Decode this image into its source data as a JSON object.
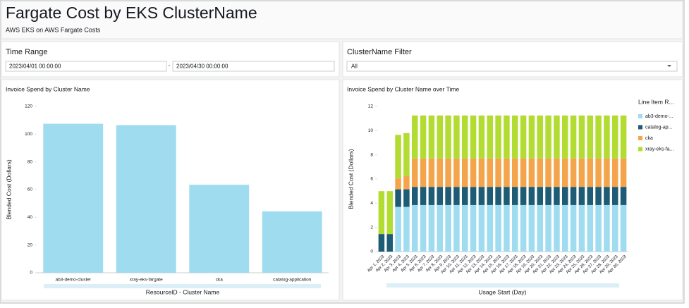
{
  "header": {
    "title": "Fargate Cost by EKS ClusterName",
    "subtitle": "AWS EKS on AWS Fargate Costs"
  },
  "controls": {
    "time_range": {
      "label": "Time Range",
      "start": "2023/04/01 00:00:00",
      "separator": "-",
      "end": "2023/04/30 00:00:00"
    },
    "cluster_filter": {
      "label": "ClusterName Filter",
      "value": "All"
    }
  },
  "chart_data": [
    {
      "type": "bar",
      "title": "Invoice Spend by Cluster Name",
      "categories": [
        "ab3-demo-cluster",
        "xray-eks-fargate",
        "cka",
        "catalog-application"
      ],
      "values": [
        107.5,
        106.5,
        63.5,
        44.3
      ],
      "color": "#a0dcef",
      "ylim": [
        0,
        120
      ],
      "yticks": [
        0,
        20,
        40,
        60,
        80,
        100,
        120
      ],
      "y_label": "Blended Cost (Dollars)",
      "x_label": "ResourceID - Cluster Name"
    },
    {
      "type": "stacked_bar",
      "title": "Invoice Spend by Cluster Name over Time",
      "categories": [
        "Apr 1, 2023",
        "Apr 2, 2023",
        "Apr 3, 2023",
        "Apr 4, 2023",
        "Apr 5, 2023",
        "Apr 6, 2023",
        "Apr 7, 2023",
        "Apr 8, 2023",
        "Apr 9, 2023",
        "Apr 10, 2023",
        "Apr 11, 2023",
        "Apr 12, 2023",
        "Apr 13, 2023",
        "Apr 14, 2023",
        "Apr 15, 2023",
        "Apr 16, 2023",
        "Apr 17, 2023",
        "Apr 18, 2023",
        "Apr 19, 2023",
        "Apr 20, 2023",
        "Apr 21, 2023",
        "Apr 22, 2023",
        "Apr 23, 2023",
        "Apr 24, 2023",
        "Apr 25, 2023",
        "Apr 26, 2023",
        "Apr 27, 2023",
        "Apr 28, 2023",
        "Apr 29, 2023",
        "Apr 30, 2023"
      ],
      "series": [
        {
          "name": "ab3-demo-...",
          "color": "#a0dcef",
          "values": [
            0,
            0,
            3.7,
            3.7,
            3.85,
            3.85,
            3.85,
            3.85,
            3.85,
            3.85,
            3.85,
            3.85,
            3.85,
            3.85,
            3.85,
            3.85,
            3.85,
            3.85,
            3.85,
            3.85,
            3.85,
            3.85,
            3.85,
            3.85,
            3.85,
            3.85,
            3.85,
            3.85,
            3.85,
            3.85
          ]
        },
        {
          "name": "catalog-ap...",
          "color": "#1e5b74",
          "values": [
            1.45,
            1.45,
            1.45,
            1.45,
            1.5,
            1.5,
            1.5,
            1.5,
            1.5,
            1.5,
            1.5,
            1.5,
            1.5,
            1.5,
            1.5,
            1.5,
            1.5,
            1.5,
            1.5,
            1.5,
            1.5,
            1.5,
            1.5,
            1.5,
            1.5,
            1.5,
            1.5,
            1.5,
            1.5,
            1.5
          ]
        },
        {
          "name": "cka",
          "color": "#f4a54b",
          "values": [
            0,
            0,
            0.9,
            1.1,
            2.35,
            2.35,
            2.35,
            2.35,
            2.35,
            2.35,
            2.35,
            2.35,
            2.35,
            2.35,
            2.35,
            2.35,
            2.35,
            2.35,
            2.35,
            2.35,
            2.35,
            2.35,
            2.35,
            2.35,
            2.35,
            2.35,
            2.35,
            2.35,
            2.35,
            2.35
          ]
        },
        {
          "name": "xray-eks-fa...",
          "color": "#b3dc33",
          "values": [
            3.55,
            3.55,
            3.6,
            3.55,
            3.55,
            3.55,
            3.55,
            3.55,
            3.55,
            3.55,
            3.55,
            3.55,
            3.55,
            3.55,
            3.55,
            3.55,
            3.55,
            3.55,
            3.55,
            3.55,
            3.55,
            3.55,
            3.55,
            3.55,
            3.55,
            3.55,
            3.55,
            3.55,
            3.55,
            3.55
          ]
        }
      ],
      "legend_title": "Line Item R...",
      "ylim": [
        0,
        12
      ],
      "yticks": [
        0,
        2,
        4,
        6,
        8,
        10,
        12
      ],
      "y_label": "Blended Cost (Dollars)",
      "x_label": "Usage Start (Day)"
    }
  ]
}
